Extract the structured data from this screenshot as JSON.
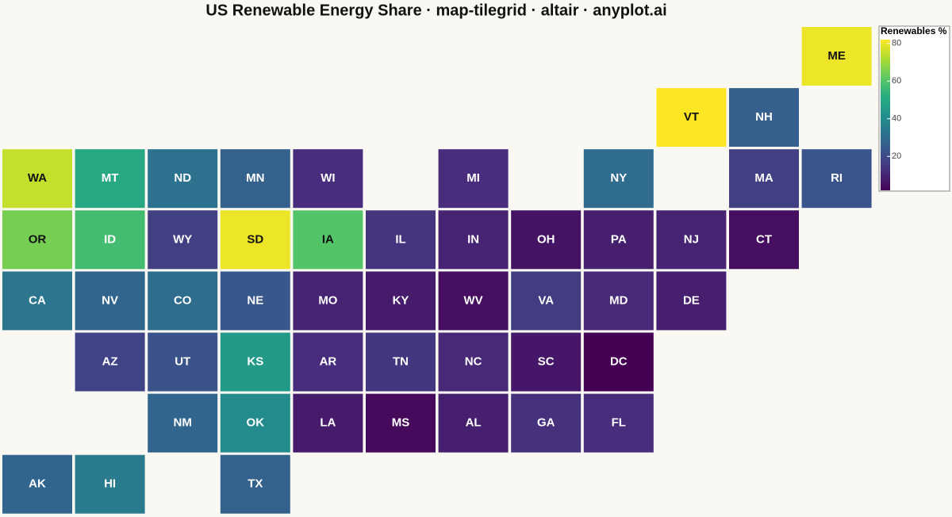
{
  "chart_data": {
    "type": "tilegrid",
    "title": "US Renewable Energy Share · map-tilegrid · altair · anyplot.ai",
    "legend_title": "Renewables %",
    "legend_ticks": [
      20,
      40,
      60,
      80
    ],
    "colormap": "viridis",
    "states": [
      "ME",
      "VT",
      "NH",
      "WA",
      "MT",
      "ND",
      "MN",
      "WI",
      "MI",
      "NY",
      "MA",
      "RI",
      "OR",
      "ID",
      "WY",
      "SD",
      "IA",
      "IL",
      "IN",
      "OH",
      "PA",
      "NJ",
      "CT",
      "CA",
      "NV",
      "CO",
      "NE",
      "MO",
      "KY",
      "WV",
      "VA",
      "MD",
      "DE",
      "AZ",
      "UT",
      "KS",
      "AR",
      "TN",
      "NC",
      "SC",
      "DC",
      "NM",
      "OK",
      "LA",
      "MS",
      "AL",
      "GA",
      "FL",
      "AK",
      "HI",
      "TX"
    ],
    "rows": [
      0,
      1,
      1,
      2,
      2,
      2,
      2,
      2,
      2,
      2,
      2,
      2,
      3,
      3,
      3,
      3,
      3,
      3,
      3,
      3,
      3,
      3,
      3,
      4,
      4,
      4,
      4,
      4,
      4,
      4,
      4,
      4,
      4,
      5,
      5,
      5,
      5,
      5,
      5,
      5,
      5,
      6,
      6,
      6,
      6,
      6,
      6,
      6,
      7,
      7,
      7
    ],
    "cols": [
      11,
      9,
      10,
      0,
      1,
      2,
      3,
      4,
      6,
      8,
      10,
      11,
      0,
      1,
      2,
      3,
      4,
      5,
      6,
      7,
      8,
      9,
      10,
      0,
      1,
      2,
      3,
      4,
      5,
      6,
      7,
      8,
      9,
      1,
      2,
      3,
      4,
      5,
      6,
      7,
      8,
      2,
      3,
      4,
      5,
      6,
      7,
      8,
      0,
      1,
      3
    ],
    "values": [
      80,
      82,
      26,
      75,
      50,
      32,
      27,
      12,
      12,
      30,
      17,
      23,
      65,
      57,
      17,
      80,
      60,
      14,
      10,
      6,
      9,
      10,
      5,
      33,
      28,
      30,
      24,
      10,
      8,
      5,
      16,
      11,
      9,
      18,
      22,
      45,
      12,
      15,
      11,
      7,
      2,
      28,
      40,
      8,
      4,
      9,
      13,
      12,
      28,
      35,
      27
    ]
  }
}
